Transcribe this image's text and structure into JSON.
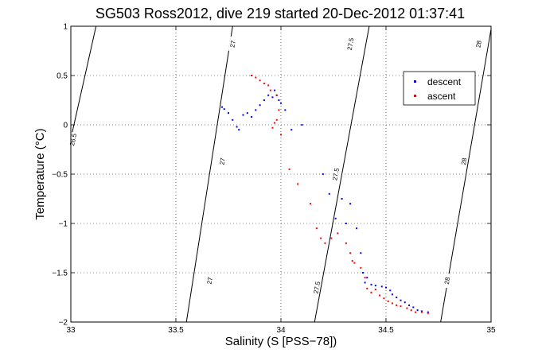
{
  "chart_data": {
    "type": "scatter",
    "title": "SG503 Ross2012, dive 219 started 20-Dec-2012 01:37:41",
    "xlabel": "Salinity (S [PSS−78])",
    "ylabel": "Temperature (°C)",
    "xlim": [
      33,
      35
    ],
    "ylim": [
      -2,
      1
    ],
    "xticks": [
      "33",
      "33.5",
      "34",
      "34.5",
      "35"
    ],
    "yticks": [
      "1",
      "0.5",
      "0",
      "−0.5",
      "−1",
      "−1.5",
      "−2"
    ],
    "grid": true,
    "legend_position": "top-right",
    "contours": [
      {
        "label": "26.5",
        "points": [
          [
            33.0,
            -0.14
          ],
          [
            33.12,
            1.0
          ]
        ],
        "label_at": [
          33.01,
          -0.15
        ]
      },
      {
        "label": "27",
        "points": [
          [
            33.55,
            -2.0
          ],
          [
            33.77,
            1.0
          ]
        ],
        "label_at": [
          [
            33.66,
            -1.58
          ],
          [
            33.72,
            -0.37
          ],
          [
            33.77,
            0.82
          ]
        ]
      },
      {
        "label": "27.5",
        "points": [
          [
            34.16,
            -2.0
          ],
          [
            34.42,
            1.0
          ]
        ],
        "label_at": [
          [
            34.17,
            -1.65
          ],
          [
            34.26,
            -0.5
          ],
          [
            34.33,
            0.82
          ]
        ]
      },
      {
        "label": "28",
        "points": [
          [
            34.76,
            -2.0
          ],
          [
            35.0,
            0.97
          ]
        ],
        "label_at": [
          [
            34.79,
            -1.58
          ],
          [
            34.87,
            -0.37
          ],
          [
            34.94,
            0.82
          ]
        ]
      }
    ],
    "series": [
      {
        "name": "descent",
        "color": "#0000ff",
        "points": [
          [
            33.72,
            0.18
          ],
          [
            33.73,
            0.16
          ],
          [
            33.75,
            0.12
          ],
          [
            33.77,
            0.05
          ],
          [
            33.79,
            -0.02
          ],
          [
            33.8,
            -0.05
          ],
          [
            33.82,
            0.1
          ],
          [
            33.84,
            0.12
          ],
          [
            33.86,
            0.08
          ],
          [
            33.88,
            0.15
          ],
          [
            33.9,
            0.2
          ],
          [
            33.92,
            0.25
          ],
          [
            33.94,
            0.3
          ],
          [
            33.96,
            0.28
          ],
          [
            33.97,
            0.35
          ],
          [
            33.98,
            0.3
          ],
          [
            33.99,
            0.25
          ],
          [
            34.0,
            0.22
          ],
          [
            34.02,
            0.15
          ],
          [
            34.05,
            -0.05
          ],
          [
            34.1,
            0.0
          ],
          [
            34.2,
            -0.5
          ],
          [
            34.23,
            -0.7
          ],
          [
            34.26,
            -0.95
          ],
          [
            34.29,
            -0.75
          ],
          [
            34.31,
            -1.0
          ],
          [
            34.33,
            -0.8
          ],
          [
            34.36,
            -1.05
          ],
          [
            34.38,
            -1.3
          ],
          [
            34.39,
            -1.5
          ],
          [
            34.4,
            -1.6
          ],
          [
            34.41,
            -1.55
          ],
          [
            34.43,
            -1.62
          ],
          [
            34.45,
            -1.63
          ],
          [
            34.48,
            -1.64
          ],
          [
            34.5,
            -1.65
          ],
          [
            34.52,
            -1.68
          ],
          [
            34.53,
            -1.72
          ],
          [
            34.55,
            -1.75
          ],
          [
            34.57,
            -1.78
          ],
          [
            34.59,
            -1.8
          ],
          [
            34.61,
            -1.83
          ],
          [
            34.63,
            -1.85
          ],
          [
            34.65,
            -1.88
          ],
          [
            34.67,
            -1.89
          ],
          [
            34.7,
            -1.9
          ]
        ]
      },
      {
        "name": "ascent",
        "color": "#ff0000",
        "points": [
          [
            33.86,
            0.5
          ],
          [
            33.88,
            0.48
          ],
          [
            33.9,
            0.45
          ],
          [
            33.92,
            0.42
          ],
          [
            33.94,
            0.4
          ],
          [
            33.95,
            0.35
          ],
          [
            33.98,
            0.3
          ],
          [
            33.99,
            0.15
          ],
          [
            33.98,
            0.05
          ],
          [
            33.97,
            0.02
          ],
          [
            33.96,
            -0.03
          ],
          [
            34.0,
            -0.1
          ],
          [
            34.04,
            -0.45
          ],
          [
            34.08,
            -0.6
          ],
          [
            34.14,
            -0.8
          ],
          [
            34.17,
            -1.05
          ],
          [
            34.19,
            -1.15
          ],
          [
            34.21,
            -1.2
          ],
          [
            34.24,
            -1.15
          ],
          [
            34.27,
            -1.1
          ],
          [
            34.31,
            -1.2
          ],
          [
            34.33,
            -1.3
          ],
          [
            34.34,
            -1.38
          ],
          [
            34.35,
            -1.4
          ],
          [
            34.38,
            -1.45
          ],
          [
            34.4,
            -1.55
          ],
          [
            34.41,
            -1.66
          ],
          [
            34.43,
            -1.7
          ],
          [
            34.45,
            -1.67
          ],
          [
            34.47,
            -1.73
          ],
          [
            34.49,
            -1.76
          ],
          [
            34.51,
            -1.79
          ],
          [
            34.53,
            -1.81
          ],
          [
            34.55,
            -1.83
          ],
          [
            34.57,
            -1.84
          ],
          [
            34.6,
            -1.86
          ],
          [
            34.62,
            -1.88
          ],
          [
            34.64,
            -1.9
          ],
          [
            34.67,
            -1.9
          ],
          [
            34.7,
            -1.91
          ]
        ]
      }
    ]
  }
}
